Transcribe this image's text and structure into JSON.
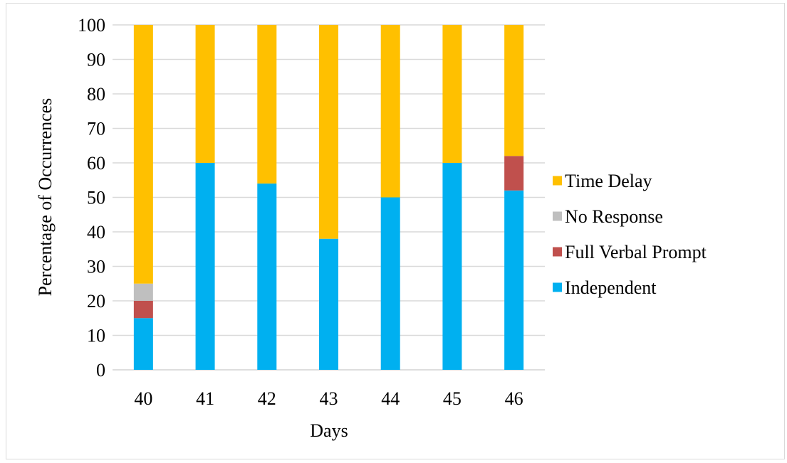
{
  "chart_data": {
    "type": "bar",
    "stacked": true,
    "categories": [
      "40",
      "41",
      "42",
      "43",
      "44",
      "45",
      "46"
    ],
    "series": [
      {
        "name": "Independent",
        "color": "#00b0f0",
        "values": [
          15,
          60,
          54,
          38,
          50,
          60,
          52
        ]
      },
      {
        "name": "Full Verbal Prompt",
        "color": "#c0504d",
        "values": [
          5,
          0,
          0,
          0,
          0,
          0,
          10
        ]
      },
      {
        "name": "No Response",
        "color": "#bfbfbf",
        "values": [
          5,
          0,
          0,
          0,
          0,
          0,
          0
        ]
      },
      {
        "name": "Time Delay",
        "color": "#ffc000",
        "values": [
          75,
          40,
          46,
          62,
          50,
          40,
          38
        ]
      }
    ],
    "legend_order": [
      "Time Delay",
      "No Response",
      "Full Verbal Prompt",
      "Independent"
    ],
    "xlabel": "Days",
    "ylabel": "Percentage of Occurrences",
    "ylim": [
      0,
      100
    ],
    "yticks": [
      0,
      10,
      20,
      30,
      40,
      50,
      60,
      70,
      80,
      90,
      100
    ],
    "grid": true,
    "legend_position": "right"
  }
}
